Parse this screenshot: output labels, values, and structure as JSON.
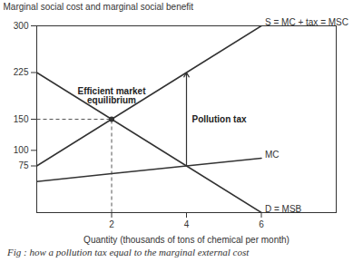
{
  "chart_data": {
    "type": "line",
    "y_label": "Marginal social cost and marginal social benefit",
    "x_label": "Quantity (thousands of tons of chemical per month)",
    "caption": "Fig : how a pollution tax equal to the marginal external cost",
    "x": [
      0,
      2,
      4,
      6
    ],
    "series": [
      {
        "name": "S = MC + tax = MSC",
        "color": "#333333",
        "values": [
          75,
          150,
          225,
          300
        ]
      },
      {
        "name": "MC",
        "color": "#333333",
        "values": [
          50,
          62.5,
          75,
          87.5
        ]
      },
      {
        "name": "D = MSB",
        "color": "#333333",
        "values": [
          225,
          150,
          75,
          0
        ]
      }
    ],
    "xlim": [
      0,
      8
    ],
    "ylim": [
      0,
      300
    ],
    "xticks": [
      2,
      4,
      6
    ],
    "yticks": [
      75,
      100,
      150,
      225,
      300
    ],
    "annotations": [
      {
        "text": "Efficient market equilibrium",
        "x": 2,
        "y": 150
      },
      {
        "text": "Pollution tax",
        "x": 4,
        "y_from": 75,
        "y_to": 225
      }
    ]
  }
}
